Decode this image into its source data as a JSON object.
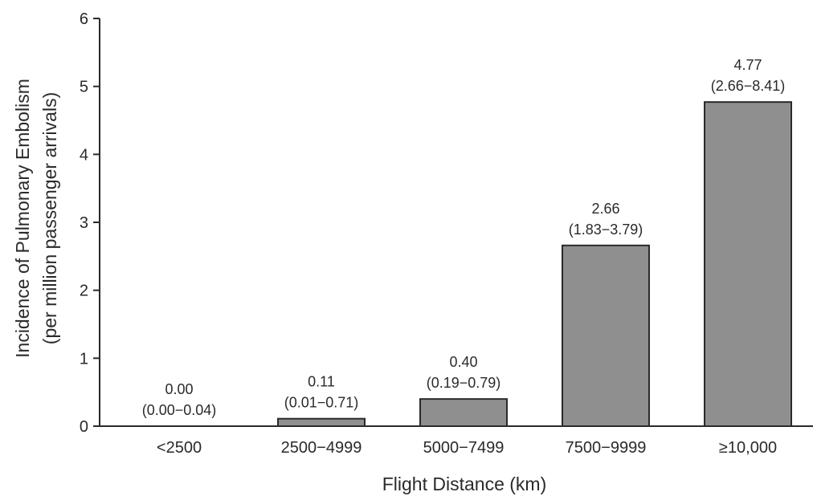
{
  "chart_data": {
    "type": "bar",
    "categories": [
      "<2500",
      "2500−4999",
      "5000−7499",
      "7500−9999",
      "≥10,000"
    ],
    "values": [
      0.0,
      0.11,
      0.4,
      2.66,
      4.77
    ],
    "value_labels": [
      "0.00",
      "0.11",
      "0.40",
      "2.66",
      "4.77"
    ],
    "ci_labels": [
      "(0.00−0.04)",
      "(0.01−0.71)",
      "(0.19−0.79)",
      "(1.83−3.79)",
      "(2.66−8.41)"
    ],
    "xlabel": "Flight Distance (km)",
    "ylabel_lines": [
      "Incidence of Pulmonary Embolism",
      "(per million passenger arrivals)"
    ],
    "ylim": [
      0,
      6
    ],
    "yticks": [
      0,
      1,
      2,
      3,
      4,
      5,
      6
    ],
    "grid": false,
    "colors": {
      "bar_fill": "#8f8f8f",
      "bar_stroke": "#2a2a2a",
      "text": "#2a2a2a"
    }
  }
}
